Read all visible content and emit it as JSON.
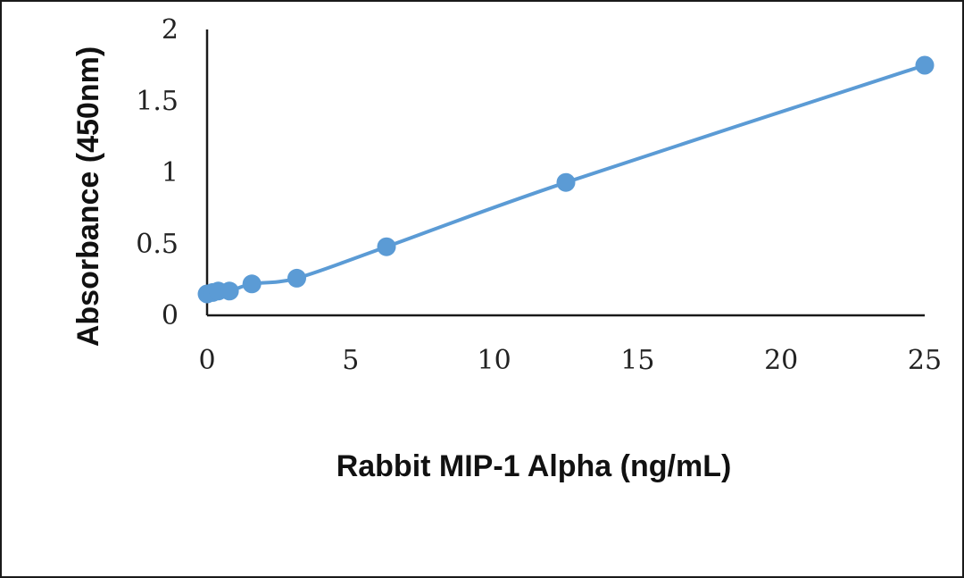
{
  "chart_data": {
    "type": "line",
    "title": "",
    "xlabel": "Rabbit MIP-1 Alpha (ng/mL)",
    "ylabel": "Absorbance (450nm)",
    "xlim": [
      0,
      25
    ],
    "ylim": [
      0,
      2
    ],
    "xticks": [
      "0",
      "5",
      "10",
      "15",
      "20",
      "25"
    ],
    "yticks": [
      "0",
      "0.5",
      "1",
      "1.5",
      "2"
    ],
    "grid": false,
    "series": [
      {
        "x": [
          0,
          0.195,
          0.39,
          0.78,
          1.56,
          3.125,
          6.25,
          12.5,
          25
        ],
        "y": [
          0.15,
          0.16,
          0.17,
          0.17,
          0.22,
          0.26,
          0.48,
          0.93,
          1.75
        ]
      }
    ],
    "colors": {
      "series": "#5b9bd5",
      "axis": "#1a1a1a"
    }
  }
}
